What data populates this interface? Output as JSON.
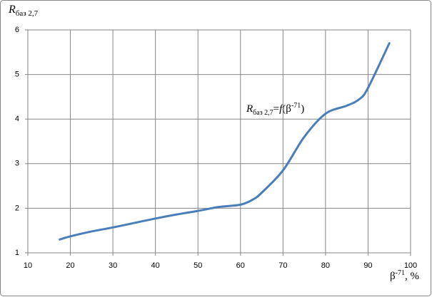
{
  "chart_data": {
    "type": "line",
    "ylabel": [
      "R",
      "баз 2,7"
    ],
    "xlabel": [
      "β",
      "-71",
      ", %"
    ],
    "annotation": [
      "R",
      "баз 2,7",
      "=",
      "f",
      "(β",
      "-71",
      ")"
    ],
    "x": [
      17.5,
      20,
      25,
      30,
      35,
      40,
      45,
      50,
      55,
      60,
      63,
      65,
      70,
      75,
      80,
      85,
      88,
      90,
      95
    ],
    "series": [
      {
        "color": "#4a7ebb",
        "values": [
          1.3,
          1.37,
          1.48,
          1.57,
          1.67,
          1.77,
          1.86,
          1.94,
          2.03,
          2.08,
          2.2,
          2.35,
          2.85,
          3.6,
          4.12,
          4.3,
          4.45,
          4.7,
          5.7
        ]
      }
    ],
    "xlim": [
      10,
      100
    ],
    "ylim": [
      1,
      6
    ],
    "xticks": [
      10,
      20,
      30,
      40,
      50,
      60,
      70,
      80,
      90,
      100
    ],
    "yticks": [
      1,
      2,
      3,
      4,
      5,
      6
    ],
    "grid": true
  }
}
